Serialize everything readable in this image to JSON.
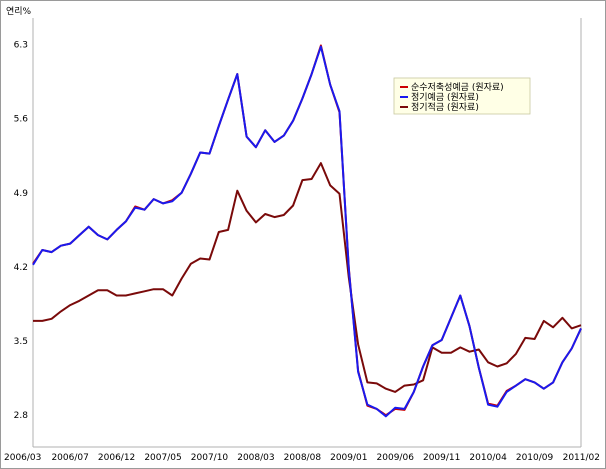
{
  "chart_data": {
    "type": "line",
    "unit_label": "연리%",
    "ylim": [
      2.5,
      6.55
    ],
    "yticks": [
      2.8,
      3.5,
      4.2,
      4.9,
      5.6,
      6.3
    ],
    "grid": false,
    "legend_position": "top-right",
    "x_tick_labels": [
      "2006/03",
      "2006/07",
      "2006/12",
      "2007/05",
      "2007/10",
      "2008/03",
      "2008/08",
      "2009/01",
      "2009/06",
      "2009/11",
      "2010/04",
      "2010/09",
      "2011/02"
    ],
    "x": [
      "2006/03",
      "2006/04",
      "2006/05",
      "2006/06",
      "2006/07",
      "2006/08",
      "2006/09",
      "2006/10",
      "2006/11",
      "2006/12",
      "2007/01",
      "2007/02",
      "2007/03",
      "2007/04",
      "2007/05",
      "2007/06",
      "2007/07",
      "2007/08",
      "2007/09",
      "2007/10",
      "2007/11",
      "2007/12",
      "2008/01",
      "2008/02",
      "2008/03",
      "2008/04",
      "2008/05",
      "2008/06",
      "2008/07",
      "2008/08",
      "2008/09",
      "2008/10",
      "2008/11",
      "2008/12",
      "2009/01",
      "2009/02",
      "2009/03",
      "2009/04",
      "2009/05",
      "2009/06",
      "2009/07",
      "2009/08",
      "2009/09",
      "2009/10",
      "2009/11",
      "2009/12",
      "2010/01",
      "2010/02",
      "2010/03",
      "2010/04",
      "2010/05",
      "2010/06",
      "2010/07",
      "2010/08",
      "2010/09",
      "2010/10",
      "2010/11",
      "2010/12",
      "2011/01",
      "2011/02"
    ],
    "series": [
      {
        "name": "순수저축성예금 (원자료)",
        "color": "#cc0000",
        "values": [
          4.23,
          4.36,
          4.34,
          4.4,
          4.42,
          4.5,
          4.58,
          4.5,
          4.46,
          4.55,
          4.63,
          4.77,
          4.74,
          4.84,
          4.8,
          4.83,
          4.9,
          5.08,
          5.28,
          5.27,
          5.53,
          5.78,
          6.02,
          5.43,
          5.33,
          5.49,
          5.38,
          5.44,
          5.58,
          5.79,
          6.02,
          6.29,
          5.92,
          5.66,
          4.19,
          3.22,
          2.89,
          2.86,
          2.8,
          2.86,
          2.85,
          3.02,
          3.26,
          3.46,
          3.51,
          3.72,
          3.93,
          3.64,
          3.25,
          2.91,
          2.89,
          3.03,
          3.08,
          3.14,
          3.11,
          3.05,
          3.11,
          3.3,
          3.43,
          3.62
        ]
      },
      {
        "name": "정기예금 (원자료)",
        "color": "#1a1aee",
        "values": [
          4.22,
          4.36,
          4.34,
          4.4,
          4.42,
          4.5,
          4.58,
          4.5,
          4.46,
          4.55,
          4.63,
          4.76,
          4.74,
          4.84,
          4.8,
          4.82,
          4.9,
          5.08,
          5.28,
          5.27,
          5.53,
          5.78,
          6.02,
          5.43,
          5.33,
          5.49,
          5.38,
          5.44,
          5.58,
          5.79,
          6.02,
          6.28,
          5.92,
          5.67,
          4.18,
          3.21,
          2.9,
          2.86,
          2.79,
          2.87,
          2.86,
          3.02,
          3.26,
          3.46,
          3.51,
          3.72,
          3.93,
          3.64,
          3.25,
          2.9,
          2.88,
          3.02,
          3.08,
          3.14,
          3.11,
          3.05,
          3.11,
          3.3,
          3.43,
          3.62
        ]
      },
      {
        "name": "정기적금 (원자료)",
        "color": "#7a0a0a",
        "values": [
          3.69,
          3.69,
          3.71,
          3.78,
          3.84,
          3.88,
          3.93,
          3.98,
          3.98,
          3.93,
          3.93,
          3.95,
          3.97,
          3.99,
          3.99,
          3.93,
          4.09,
          4.23,
          4.28,
          4.27,
          4.53,
          4.55,
          4.92,
          4.73,
          4.62,
          4.7,
          4.67,
          4.69,
          4.78,
          5.02,
          5.03,
          5.18,
          4.97,
          4.89,
          4.1,
          3.47,
          3.11,
          3.1,
          3.05,
          3.02,
          3.08,
          3.09,
          3.13,
          3.44,
          3.39,
          3.39,
          3.44,
          3.4,
          3.42,
          3.3,
          3.26,
          3.29,
          3.38,
          3.53,
          3.52,
          3.69,
          3.63,
          3.72,
          3.62,
          3.65
        ]
      }
    ]
  }
}
